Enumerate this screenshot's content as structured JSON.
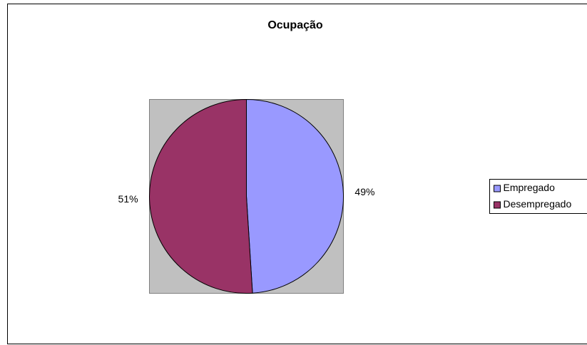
{
  "chart_data": {
    "type": "pie",
    "title": "Ocupação",
    "categories": [
      "Empregado",
      "Desempregado"
    ],
    "values": [
      49,
      51
    ],
    "value_labels": [
      "49%",
      "51%"
    ],
    "colors": [
      "#9999ff",
      "#993366"
    ],
    "legend": "right"
  }
}
